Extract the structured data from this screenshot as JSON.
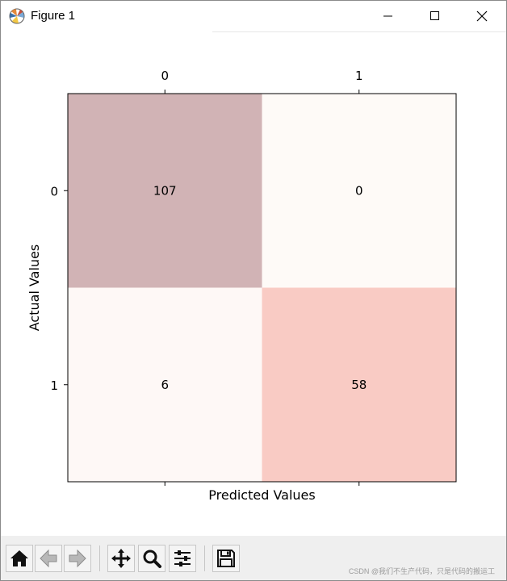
{
  "window": {
    "title": "Figure 1",
    "icon": "matplotlib-logo-icon"
  },
  "chart_data": {
    "type": "heatmap",
    "x_categories": [
      "0",
      "1"
    ],
    "y_categories": [
      "0",
      "1"
    ],
    "values": [
      [
        107,
        0
      ],
      [
        6,
        58
      ]
    ],
    "cell_colors": [
      [
        "#d1b3b5",
        "#fefaf7"
      ],
      [
        "#fef8f6",
        "#f9cbc4"
      ]
    ],
    "xlabel": "Predicted Values",
    "ylabel": "Actual Values",
    "x_tick_position": "top",
    "grid": false,
    "colorbar": false
  },
  "toolbar": {
    "buttons": [
      "home-icon",
      "back-arrow-icon",
      "forward-arrow-icon",
      "pan-icon",
      "zoom-icon",
      "configure-subplots-icon",
      "save-icon"
    ]
  },
  "watermark": "CSDN @我们不生产代码，只是代码的搬运工"
}
